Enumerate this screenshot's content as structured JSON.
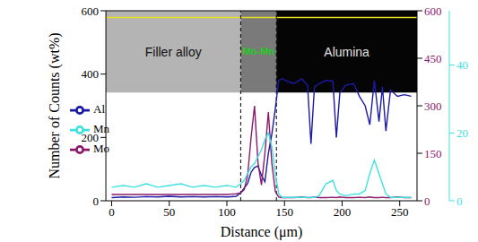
{
  "chart_data": {
    "type": "line",
    "xlabel": "Distance (μm)",
    "ylabel": "Number of Counts (wt%)",
    "xlim": [
      -5,
      265
    ],
    "xticks": [
      0,
      50,
      100,
      150,
      200,
      250
    ],
    "ylim": [
      0,
      600
    ],
    "yticks": [
      0,
      200,
      400,
      600
    ],
    "y2lim": [
      0,
      600
    ],
    "y2ticks": [
      0,
      150,
      300,
      450,
      600
    ],
    "y3lim": [
      0,
      56
    ],
    "y3ticks": [
      0,
      20,
      40
    ],
    "legend": "left",
    "grid": false,
    "boundaries": [
      112,
      143
    ],
    "annotations": [
      "Filler alloy",
      "Mo-Mn",
      "Alumina"
    ],
    "x": [
      0,
      10,
      20,
      30,
      40,
      50,
      60,
      70,
      80,
      90,
      100,
      108,
      112,
      115,
      118,
      121,
      124,
      127,
      130,
      133,
      136,
      139,
      142,
      145,
      148,
      152,
      158,
      165,
      170,
      173,
      176,
      180,
      186,
      192,
      195,
      198,
      203,
      210,
      215,
      220,
      224,
      228,
      232,
      235,
      238,
      242,
      248,
      254,
      260
    ],
    "series": [
      {
        "name": "Al",
        "color": "#1a1aa6",
        "values": [
          10,
          12,
          11,
          13,
          12,
          14,
          12,
          13,
          12,
          13,
          12,
          14,
          25,
          40,
          55,
          90,
          105,
          110,
          80,
          60,
          150,
          210,
          290,
          380,
          385,
          378,
          370,
          385,
          365,
          180,
          360,
          370,
          380,
          378,
          200,
          340,
          365,
          370,
          330,
          300,
          240,
          380,
          250,
          360,
          220,
          350,
          330,
          335,
          330
        ]
      },
      {
        "name": "Mo",
        "color": "#8b1a6b",
        "axis": "y2",
        "values": [
          20,
          20,
          20,
          20,
          20,
          20,
          20,
          20,
          20,
          20,
          20,
          22,
          25,
          35,
          80,
          200,
          300,
          120,
          50,
          150,
          280,
          120,
          30,
          12,
          10,
          10,
          10,
          12,
          10,
          10,
          12,
          10,
          10,
          11,
          10,
          12,
          10,
          10,
          11,
          10,
          12,
          10,
          10,
          11,
          10,
          10,
          12,
          10,
          10
        ]
      },
      {
        "name": "Mn",
        "color": "#3fe0e0",
        "axis": "y3",
        "values": [
          4,
          4.5,
          4,
          5,
          4,
          4.5,
          5,
          4,
          4.5,
          4,
          4.5,
          4,
          5,
          6,
          8,
          10,
          11,
          13,
          15,
          18,
          20,
          16,
          8,
          2,
          1,
          1,
          1,
          1,
          1,
          1,
          1,
          1.5,
          5,
          6,
          3,
          2,
          1.5,
          2,
          2,
          3,
          8,
          12,
          8,
          5,
          2,
          1,
          1,
          1,
          1
        ]
      }
    ]
  }
}
